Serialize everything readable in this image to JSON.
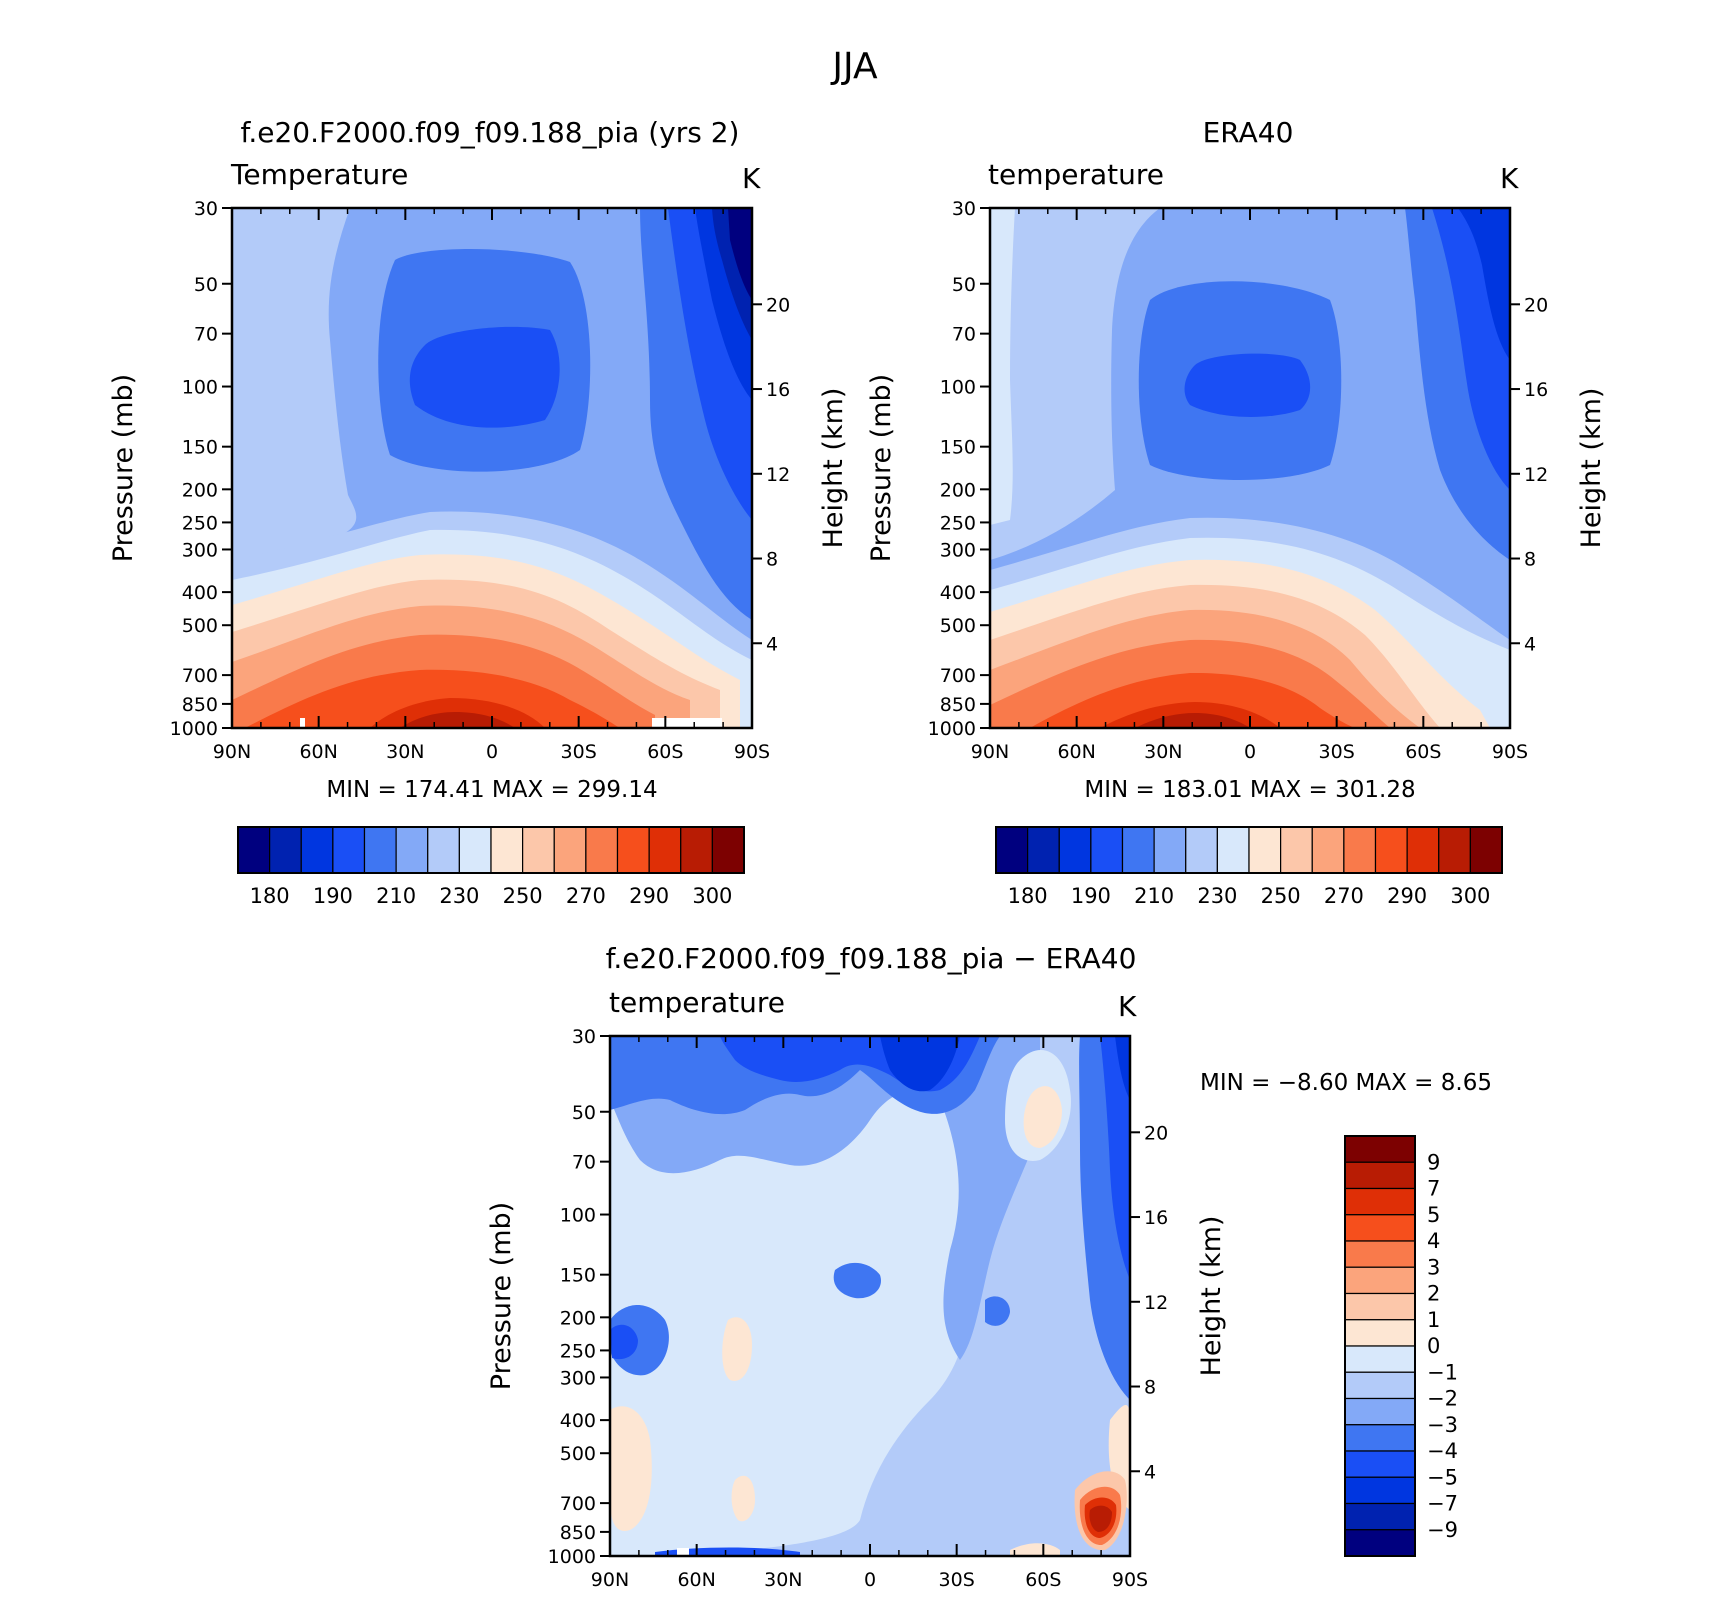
{
  "figure": {
    "title": "JJA"
  },
  "colors": {
    "temp_palette": [
      "#00007f",
      "#0022b0",
      "#0036e0",
      "#1a4ff5",
      "#3f76f2",
      "#83a9f7",
      "#b3cbf9",
      "#d8e8fb",
      "#fde6d3",
      "#fcc7aa",
      "#fba47c",
      "#f97a4b",
      "#f64f1c",
      "#df2f06",
      "#b81c04",
      "#7d0101"
    ],
    "diff_palette": [
      "#00007f",
      "#0022b0",
      "#0036e0",
      "#1a4ff5",
      "#3f76f2",
      "#83a9f7",
      "#b3cbf9",
      "#d8e8fb",
      "#fde6d3",
      "#fcc7aa",
      "#fba47c",
      "#f97a4b",
      "#f64f1c",
      "#df2f06",
      "#b81c04",
      "#7d0101"
    ]
  },
  "chart_data": [
    {
      "type": "heatmap",
      "panel_title": "f.e20.F2000.f09_f09.188_pia (yrs 2)",
      "variable": "Temperature",
      "units": "K",
      "x_ticks": [
        "90N",
        "60N",
        "30N",
        "0",
        "30S",
        "60S",
        "90S"
      ],
      "x_values": [
        90,
        60,
        30,
        0,
        -30,
        -60,
        -90
      ],
      "y_ticks": [
        "30",
        "50",
        "70",
        "100",
        "150",
        "200",
        "250",
        "300",
        "400",
        "500",
        "700",
        "850",
        "1000"
      ],
      "y_values": [
        30,
        50,
        70,
        100,
        150,
        200,
        250,
        300,
        400,
        500,
        700,
        850,
        1000
      ],
      "ylabel": "Pressure (mb)",
      "right_ticks": [
        "20",
        "16",
        "12",
        "8",
        "4"
      ],
      "right_values_km": [
        20,
        16,
        12,
        8,
        4
      ],
      "right_label": "Height (km)",
      "min_label": "MIN  =  174.41    MAX  =  299.14",
      "min": 174.41,
      "max": 299.14,
      "colorbar_labels": [
        "180",
        "190",
        "210",
        "230",
        "250",
        "270",
        "290",
        "300"
      ],
      "colorbar_levels": [
        180,
        185,
        190,
        200,
        210,
        220,
        230,
        240,
        250,
        260,
        270,
        280,
        290,
        295,
        300
      ]
    },
    {
      "type": "heatmap",
      "panel_title": "ERA40",
      "variable": "temperature",
      "units": "K",
      "x_ticks": [
        "90N",
        "60N",
        "30N",
        "0",
        "30S",
        "60S",
        "90S"
      ],
      "x_values": [
        90,
        60,
        30,
        0,
        -30,
        -60,
        -90
      ],
      "y_ticks": [
        "30",
        "50",
        "70",
        "100",
        "150",
        "200",
        "250",
        "300",
        "400",
        "500",
        "700",
        "850",
        "1000"
      ],
      "y_values": [
        30,
        50,
        70,
        100,
        150,
        200,
        250,
        300,
        400,
        500,
        700,
        850,
        1000
      ],
      "ylabel": "Pressure (mb)",
      "right_ticks": [
        "20",
        "16",
        "12",
        "8",
        "4"
      ],
      "right_values_km": [
        20,
        16,
        12,
        8,
        4
      ],
      "right_label": "Height (km)",
      "min_label": "MIN  =  183.01    MAX  =  301.28",
      "min": 183.01,
      "max": 301.28,
      "colorbar_labels": [
        "180",
        "190",
        "210",
        "230",
        "250",
        "270",
        "290",
        "300"
      ],
      "colorbar_levels": [
        180,
        185,
        190,
        200,
        210,
        220,
        230,
        240,
        250,
        260,
        270,
        280,
        290,
        295,
        300
      ]
    },
    {
      "type": "heatmap",
      "panel_title": "f.e20.F2000.f09_f09.188_pia − ERA40",
      "variable": "temperature",
      "units": "K",
      "x_ticks": [
        "90N",
        "60N",
        "30N",
        "0",
        "30S",
        "60S",
        "90S"
      ],
      "x_values": [
        90,
        60,
        30,
        0,
        -30,
        -60,
        -90
      ],
      "y_ticks": [
        "30",
        "50",
        "70",
        "100",
        "150",
        "200",
        "250",
        "300",
        "400",
        "500",
        "700",
        "850",
        "1000"
      ],
      "y_values": [
        30,
        50,
        70,
        100,
        150,
        200,
        250,
        300,
        400,
        500,
        700,
        850,
        1000
      ],
      "ylabel": "Pressure (mb)",
      "right_ticks": [
        "20",
        "16",
        "12",
        "8",
        "4"
      ],
      "right_values_km": [
        20,
        16,
        12,
        8,
        4
      ],
      "right_label": "Height (km)",
      "min_label": "MIN  =     −8.60    MAX  =      8.65",
      "min": -8.6,
      "max": 8.65,
      "colorbar_labels": [
        "9",
        "7",
        "5",
        "4",
        "3",
        "2",
        "1",
        "0",
        "−1",
        "−2",
        "−3",
        "−4",
        "−5",
        "−7",
        "−9"
      ],
      "colorbar_levels": [
        9,
        7,
        5,
        4,
        3,
        2,
        1,
        0,
        -1,
        -2,
        -3,
        -4,
        -5,
        -7,
        -9
      ]
    }
  ]
}
